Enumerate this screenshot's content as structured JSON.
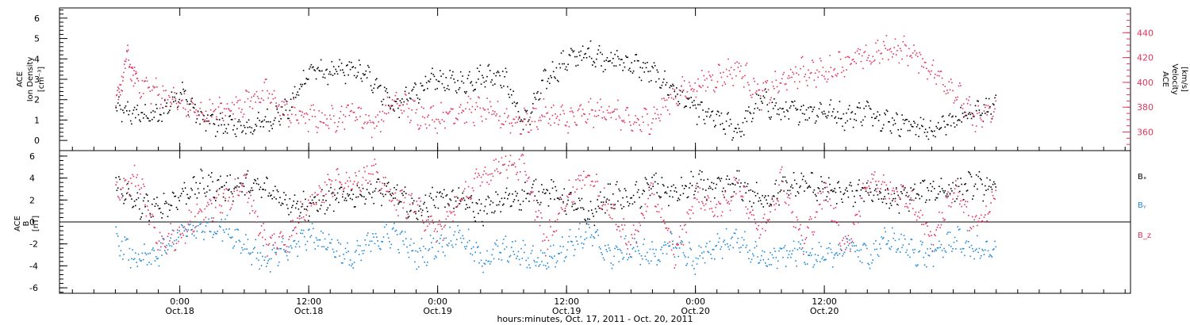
{
  "chart_data": [
    {
      "type": "scatter",
      "panel": "plasma",
      "ylabel_left": [
        "ACE",
        "Ion Density",
        "[cm⁻³]"
      ],
      "ylabel_right": [
        "ACE",
        "Velocity",
        "[km/s]"
      ],
      "ylim_left": [
        -0.5,
        6.5
      ],
      "ylim_right": [
        345,
        460
      ],
      "yticks_left": [
        "0",
        "1",
        "2",
        "3",
        "4",
        "5",
        "6"
      ],
      "yticks_right": [
        "360",
        "380",
        "400",
        "420",
        "440"
      ],
      "series": [
        {
          "axis": "left",
          "color": "#000000",
          "x_hours": [
            0,
            2,
            4,
            6,
            8,
            10,
            12,
            14,
            16,
            18,
            20,
            22,
            24,
            26,
            28,
            30,
            32,
            34,
            36,
            38,
            40,
            42,
            44,
            46,
            48,
            50,
            52,
            54,
            56,
            58,
            60,
            62,
            64,
            66,
            68,
            70,
            72,
            74,
            76,
            78,
            80,
            82
          ],
          "values": [
            1.5,
            1.3,
            1.2,
            2.5,
            1.0,
            0.8,
            0.6,
            1.0,
            1.5,
            3.5,
            3.3,
            3.5,
            3.0,
            1.6,
            2.5,
            3.0,
            2.8,
            3.2,
            3.3,
            0.8,
            3.0,
            4.0,
            4.3,
            4.0,
            3.8,
            3.3,
            2.5,
            1.5,
            1.0,
            0.5,
            2.0,
            1.4,
            1.5,
            1.5,
            1.2,
            1.5,
            1.0,
            0.8,
            0.5,
            1.0,
            1.6,
            1.6
          ]
        },
        {
          "axis": "right",
          "color": "#e0365f",
          "x_hours": [
            0,
            1,
            2,
            4,
            6,
            8,
            10,
            12,
            14,
            16,
            18,
            20,
            22,
            24,
            26,
            28,
            30,
            32,
            34,
            36,
            38,
            40,
            42,
            44,
            46,
            48,
            50,
            52,
            54,
            56,
            58,
            60,
            62,
            64,
            66,
            68,
            70,
            72,
            74,
            76,
            78,
            80,
            82
          ],
          "values": [
            380,
            420,
            400,
            392,
            383,
            375,
            378,
            385,
            392,
            376,
            372,
            370,
            378,
            366,
            385,
            375,
            372,
            378,
            378,
            372,
            368,
            375,
            370,
            375,
            378,
            366,
            372,
            390,
            398,
            405,
            412,
            390,
            400,
            410,
            408,
            418,
            420,
            428,
            425,
            410,
            395,
            370,
            378
          ]
        }
      ]
    },
    {
      "type": "scatter",
      "panel": "magnetic-field",
      "ylabel_left": [
        "ACE",
        "B",
        "[nT]"
      ],
      "ylim": [
        -6.5,
        6.5
      ],
      "yticks": [
        "-6",
        "-4",
        "-2",
        "0",
        "2",
        "4",
        "6"
      ],
      "legend": [
        "Bₓ",
        "Bᵧ",
        "B_z"
      ],
      "series": [
        {
          "name": "Bₓ",
          "color": "#000000",
          "x_hours": [
            0,
            2,
            4,
            6,
            8,
            10,
            12,
            14,
            16,
            18,
            20,
            22,
            24,
            26,
            28,
            30,
            32,
            34,
            36,
            38,
            40,
            42,
            44,
            46,
            48,
            50,
            52,
            54,
            56,
            58,
            60,
            62,
            64,
            66,
            68,
            70,
            72,
            74,
            76,
            78,
            80,
            82
          ],
          "values": [
            3.5,
            1.5,
            1.2,
            2.5,
            3.5,
            3.2,
            3.4,
            3.0,
            2.0,
            1.5,
            2.0,
            2.5,
            3.0,
            2.5,
            1.0,
            2.5,
            2.0,
            1.0,
            2.0,
            2.5,
            3.0,
            2.0,
            0.5,
            2.5,
            2.0,
            3.5,
            2.5,
            3.5,
            3.0,
            3.5,
            2.0,
            3.0,
            3.5,
            3.0,
            2.5,
            3.0,
            2.0,
            2.5,
            3.0,
            3.0,
            3.5,
            3.0
          ]
        },
        {
          "name": "Bᵧ",
          "color": "#1e88d8",
          "x_hours": [
            0,
            2,
            4,
            6,
            8,
            10,
            12,
            14,
            16,
            18,
            20,
            22,
            24,
            26,
            28,
            30,
            32,
            34,
            36,
            38,
            40,
            42,
            44,
            46,
            48,
            50,
            52,
            54,
            56,
            58,
            60,
            62,
            64,
            66,
            68,
            70,
            72,
            74,
            76,
            78,
            80,
            82
          ],
          "values": [
            -1.5,
            -3.5,
            -3.0,
            -1.0,
            -0.5,
            -0.3,
            -2.0,
            -3.5,
            -2.5,
            -1.0,
            -2.0,
            -3.5,
            -1.5,
            -1.0,
            -3.0,
            -2.0,
            -1.0,
            -3.5,
            -2.5,
            -3.0,
            -3.5,
            -2.0,
            -1.0,
            -3.0,
            -2.5,
            -3.0,
            -2.0,
            -3.5,
            -2.0,
            -1.5,
            -3.5,
            -3.0,
            -2.5,
            -3.5,
            -2.0,
            -3.0,
            -1.5,
            -2.5,
            -3.0,
            -1.5,
            -2.5,
            -3.0
          ]
        },
        {
          "name": "B_z",
          "color": "#e0365f",
          "x_hours": [
            0,
            2,
            4,
            6,
            8,
            10,
            12,
            14,
            16,
            18,
            20,
            22,
            24,
            26,
            28,
            30,
            32,
            34,
            36,
            38,
            40,
            42,
            44,
            46,
            48,
            50,
            52,
            54,
            56,
            58,
            60,
            62,
            64,
            66,
            68,
            70,
            72,
            74,
            76,
            78,
            80,
            82
          ],
          "values": [
            3.0,
            4.0,
            -2.0,
            -1.0,
            1.0,
            2.0,
            3.5,
            -2.0,
            -1.5,
            2.0,
            3.5,
            4.0,
            4.5,
            2.0,
            1.5,
            -1.0,
            2.0,
            4.0,
            5.5,
            5.0,
            -2.0,
            2.5,
            4.5,
            1.0,
            -2.0,
            3.0,
            -3.0,
            2.5,
            1.0,
            3.5,
            -1.0,
            4.0,
            -2.0,
            3.0,
            -2.5,
            4.0,
            3.0,
            2.0,
            -1.5,
            3.0,
            -0.5,
            2.5
          ]
        }
      ]
    }
  ],
  "x_axis": {
    "xlim_hours": [
      -5.2,
      94.5
    ],
    "ticks": [
      {
        "hours": 6,
        "time": "0:00",
        "date": "Oct.18"
      },
      {
        "hours": 18,
        "time": "12:00",
        "date": "Oct.18"
      },
      {
        "hours": 30,
        "time": "0:00",
        "date": "Oct.19"
      },
      {
        "hours": 42,
        "time": "12:00",
        "date": "Oct.19"
      },
      {
        "hours": 54,
        "time": "0:00",
        "date": "Oct.20"
      },
      {
        "hours": 66,
        "time": "12:00",
        "date": "Oct.20"
      }
    ],
    "xlabel": "hours:minutes, Oct. 17, 2011 - Oct. 20, 2011"
  }
}
